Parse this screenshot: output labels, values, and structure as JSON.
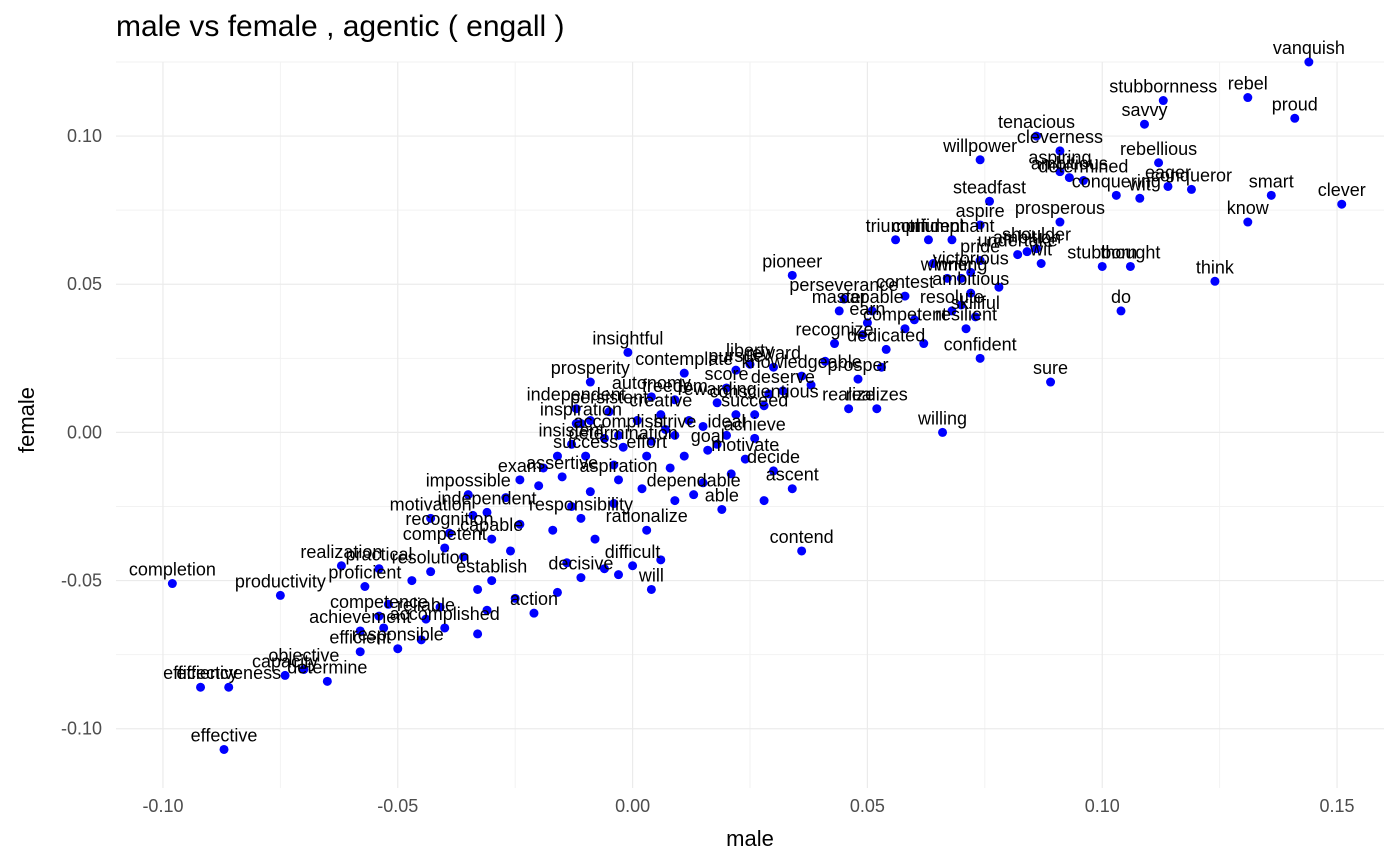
{
  "chart_data": {
    "type": "scatter",
    "title": "male vs female , agentic ( engall )",
    "xlabel": "male",
    "ylabel": "female",
    "xlim": [
      -0.11,
      0.16
    ],
    "ylim": [
      -0.12,
      0.125
    ],
    "x_ticks": [
      -0.1,
      -0.05,
      0.0,
      0.05,
      0.1,
      0.15
    ],
    "x_tick_labels": [
      "-0.10",
      "-0.05",
      "0.00",
      "0.05",
      "0.10",
      "0.15"
    ],
    "y_ticks": [
      -0.1,
      -0.05,
      0.0,
      0.05,
      0.1
    ],
    "y_tick_labels": [
      "-0.10",
      "-0.05",
      "0.00",
      "0.05",
      "0.10"
    ],
    "grid": true,
    "point_color": "#0000ff",
    "points": [
      {
        "label": "vanquish",
        "x": 0.144,
        "y": 0.125
      },
      {
        "label": "rebel",
        "x": 0.131,
        "y": 0.113
      },
      {
        "label": "stubbornness",
        "x": 0.113,
        "y": 0.112
      },
      {
        "label": "proud",
        "x": 0.141,
        "y": 0.106
      },
      {
        "label": "savvy",
        "x": 0.109,
        "y": 0.104
      },
      {
        "label": "tenacious",
        "x": 0.086,
        "y": 0.1
      },
      {
        "label": "cleverness",
        "x": 0.091,
        "y": 0.095
      },
      {
        "label": "rebellious",
        "x": 0.112,
        "y": 0.091
      },
      {
        "label": "willpower",
        "x": 0.074,
        "y": 0.092
      },
      {
        "label": "aspiring",
        "x": 0.091,
        "y": 0.088
      },
      {
        "label": "ambitious",
        "x": 0.093,
        "y": 0.086
      },
      {
        "label": "determined",
        "x": 0.096,
        "y": 0.085
      },
      {
        "label": "conquering",
        "x": 0.103,
        "y": 0.08
      },
      {
        "label": "conqueror",
        "x": 0.119,
        "y": 0.082
      },
      {
        "label": "eager",
        "x": 0.114,
        "y": 0.083
      },
      {
        "label": "wit",
        "x": 0.108,
        "y": 0.079
      },
      {
        "label": "smart",
        "x": 0.136,
        "y": 0.08
      },
      {
        "label": "clever",
        "x": 0.151,
        "y": 0.077
      },
      {
        "label": "steadfast",
        "x": 0.076,
        "y": 0.078
      },
      {
        "label": "know",
        "x": 0.131,
        "y": 0.071
      },
      {
        "label": "aspire",
        "x": 0.074,
        "y": 0.07
      },
      {
        "label": "prosperous",
        "x": 0.091,
        "y": 0.071
      },
      {
        "label": "triumph",
        "x": 0.056,
        "y": 0.065
      },
      {
        "label": "confident",
        "x": 0.063,
        "y": 0.065
      },
      {
        "label": "triumphant",
        "x": 0.068,
        "y": 0.065
      },
      {
        "label": "shoulder",
        "x": 0.086,
        "y": 0.062
      },
      {
        "label": "pride",
        "x": 0.074,
        "y": 0.058
      },
      {
        "label": "undertake",
        "x": 0.082,
        "y": 0.06
      },
      {
        "label": "ambition",
        "x": 0.084,
        "y": 0.061
      },
      {
        "label": "stubborn",
        "x": 0.1,
        "y": 0.056
      },
      {
        "label": "thought",
        "x": 0.106,
        "y": 0.056
      },
      {
        "label": "wit",
        "x": 0.087,
        "y": 0.057
      },
      {
        "label": "think",
        "x": 0.124,
        "y": 0.051
      },
      {
        "label": "winner",
        "x": 0.067,
        "y": 0.052
      },
      {
        "label": "victorious",
        "x": 0.072,
        "y": 0.054
      },
      {
        "label": "writing",
        "x": 0.07,
        "y": 0.052
      },
      {
        "label": "pioneer",
        "x": 0.034,
        "y": 0.053
      },
      {
        "label": "perseverance",
        "x": 0.045,
        "y": 0.045
      },
      {
        "label": "contest",
        "x": 0.058,
        "y": 0.046
      },
      {
        "label": "ambitious",
        "x": 0.072,
        "y": 0.047
      },
      {
        "label": "do",
        "x": 0.104,
        "y": 0.041
      },
      {
        "label": "master",
        "x": 0.044,
        "y": 0.041
      },
      {
        "label": "capable",
        "x": 0.051,
        "y": 0.041
      },
      {
        "label": "resolute",
        "x": 0.068,
        "y": 0.041
      },
      {
        "label": "skillful",
        "x": 0.073,
        "y": 0.039
      },
      {
        "label": "earn",
        "x": 0.05,
        "y": 0.037
      },
      {
        "label": "competent",
        "x": 0.058,
        "y": 0.035
      },
      {
        "label": "resilient",
        "x": 0.071,
        "y": 0.035
      },
      {
        "label": "recognize",
        "x": 0.043,
        "y": 0.03
      },
      {
        "label": "dedicated",
        "x": 0.054,
        "y": 0.028
      },
      {
        "label": "confident",
        "x": 0.074,
        "y": 0.025
      },
      {
        "label": "insightful",
        "x": -0.001,
        "y": 0.027
      },
      {
        "label": "liberty",
        "x": 0.025,
        "y": 0.023
      },
      {
        "label": "contemplate",
        "x": 0.011,
        "y": 0.02
      },
      {
        "label": "pursue",
        "x": 0.022,
        "y": 0.021
      },
      {
        "label": "reward",
        "x": 0.03,
        "y": 0.022
      },
      {
        "label": "knowledgeable",
        "x": 0.036,
        "y": 0.019
      },
      {
        "label": "prosper",
        "x": 0.048,
        "y": 0.018
      },
      {
        "label": "sure",
        "x": 0.089,
        "y": 0.017
      },
      {
        "label": "prosperity",
        "x": -0.009,
        "y": 0.017
      },
      {
        "label": "score",
        "x": 0.02,
        "y": 0.015
      },
      {
        "label": "deserve",
        "x": 0.032,
        "y": 0.014
      },
      {
        "label": "autonomy",
        "x": 0.004,
        "y": 0.012
      },
      {
        "label": "freedom",
        "x": 0.009,
        "y": 0.011
      },
      {
        "label": "rewarding",
        "x": 0.018,
        "y": 0.01
      },
      {
        "label": "conscientious",
        "x": 0.028,
        "y": 0.009
      },
      {
        "label": "realize",
        "x": 0.046,
        "y": 0.008
      },
      {
        "label": "realizes",
        "x": 0.052,
        "y": 0.008
      },
      {
        "label": "independent",
        "x": -0.012,
        "y": 0.008
      },
      {
        "label": "persistent",
        "x": -0.005,
        "y": 0.007
      },
      {
        "label": "creative",
        "x": 0.006,
        "y": 0.006
      },
      {
        "label": "succeed",
        "x": 0.026,
        "y": 0.006
      },
      {
        "label": "willing",
        "x": 0.066,
        "y": 0.0
      },
      {
        "label": "inspiration",
        "x": -0.011,
        "y": 0.003
      },
      {
        "label": "accomplish",
        "x": -0.003,
        "y": -0.001
      },
      {
        "label": "strive",
        "x": 0.009,
        "y": -0.001
      },
      {
        "label": "ideal",
        "x": 0.02,
        "y": -0.001
      },
      {
        "label": "achieve",
        "x": 0.026,
        "y": -0.002
      },
      {
        "label": "insistent",
        "x": -0.013,
        "y": -0.004
      },
      {
        "label": "determination",
        "x": -0.002,
        "y": -0.005
      },
      {
        "label": "goal",
        "x": 0.016,
        "y": -0.006
      },
      {
        "label": "success",
        "x": -0.01,
        "y": -0.008
      },
      {
        "label": "effort",
        "x": 0.003,
        "y": -0.008
      },
      {
        "label": "motivate",
        "x": 0.024,
        "y": -0.009
      },
      {
        "label": "decide",
        "x": 0.03,
        "y": -0.013
      },
      {
        "label": "exam",
        "x": -0.024,
        "y": -0.016
      },
      {
        "label": "assertive",
        "x": -0.015,
        "y": -0.015
      },
      {
        "label": "aspiration",
        "x": -0.003,
        "y": -0.016
      },
      {
        "label": "ascent",
        "x": 0.034,
        "y": -0.019
      },
      {
        "label": "impossible",
        "x": -0.035,
        "y": -0.021
      },
      {
        "label": "dependable",
        "x": 0.013,
        "y": -0.021
      },
      {
        "label": "able",
        "x": 0.019,
        "y": -0.026
      },
      {
        "label": "motivation",
        "x": -0.043,
        "y": -0.029
      },
      {
        "label": "independent",
        "x": -0.031,
        "y": -0.027
      },
      {
        "label": "responsibility",
        "x": -0.011,
        "y": -0.029
      },
      {
        "label": "rationalize",
        "x": 0.003,
        "y": -0.033
      },
      {
        "label": "recognition",
        "x": -0.039,
        "y": -0.034
      },
      {
        "label": "contend",
        "x": 0.036,
        "y": -0.04
      },
      {
        "label": "capable",
        "x": -0.03,
        "y": -0.036
      },
      {
        "label": "competent",
        "x": -0.04,
        "y": -0.039
      },
      {
        "label": "realization",
        "x": -0.062,
        "y": -0.045
      },
      {
        "label": "practical",
        "x": -0.054,
        "y": -0.046
      },
      {
        "label": "resolution",
        "x": -0.043,
        "y": -0.047
      },
      {
        "label": "difficult",
        "x": 0.0,
        "y": -0.045
      },
      {
        "label": "will",
        "x": 0.004,
        "y": -0.053
      },
      {
        "label": "completion",
        "x": -0.098,
        "y": -0.051
      },
      {
        "label": "productivity",
        "x": -0.075,
        "y": -0.055
      },
      {
        "label": "proficient",
        "x": -0.057,
        "y": -0.052
      },
      {
        "label": "establish",
        "x": -0.03,
        "y": -0.05
      },
      {
        "label": "decisive",
        "x": -0.011,
        "y": -0.049
      },
      {
        "label": "competence",
        "x": -0.054,
        "y": -0.062
      },
      {
        "label": "reliable",
        "x": -0.044,
        "y": -0.063
      },
      {
        "label": "action",
        "x": -0.021,
        "y": -0.061
      },
      {
        "label": "achievement",
        "x": -0.058,
        "y": -0.067
      },
      {
        "label": "accomplished",
        "x": -0.04,
        "y": -0.066
      },
      {
        "label": "efficient",
        "x": -0.058,
        "y": -0.074
      },
      {
        "label": "responsible",
        "x": -0.05,
        "y": -0.073
      },
      {
        "label": "objective",
        "x": -0.07,
        "y": -0.08
      },
      {
        "label": "determine",
        "x": -0.065,
        "y": -0.084
      },
      {
        "label": "capacity",
        "x": -0.074,
        "y": -0.082
      },
      {
        "label": "effectiveness",
        "x": -0.086,
        "y": -0.086
      },
      {
        "label": "efficiency",
        "x": -0.092,
        "y": -0.086
      },
      {
        "label": "effective",
        "x": -0.087,
        "y": -0.107
      }
    ],
    "unlabeled_points": [
      [
        -0.012,
        0.003
      ],
      [
        -0.009,
        0.004
      ],
      [
        0.001,
        0.004
      ],
      [
        0.012,
        0.004
      ],
      [
        0.022,
        0.006
      ],
      [
        0.015,
        0.002
      ],
      [
        0.007,
        0.001
      ],
      [
        -0.006,
        -0.002
      ],
      [
        0.004,
        -0.003
      ],
      [
        0.018,
        -0.004
      ],
      [
        -0.016,
        -0.008
      ],
      [
        -0.004,
        -0.011
      ],
      [
        0.008,
        -0.012
      ],
      [
        0.021,
        -0.014
      ],
      [
        -0.02,
        -0.018
      ],
      [
        -0.009,
        -0.02
      ],
      [
        0.002,
        -0.019
      ],
      [
        0.015,
        -0.017
      ],
      [
        -0.027,
        -0.022
      ],
      [
        -0.013,
        -0.025
      ],
      [
        -0.004,
        -0.024
      ],
      [
        0.009,
        -0.023
      ],
      [
        -0.034,
        -0.028
      ],
      [
        -0.024,
        -0.031
      ],
      [
        -0.017,
        -0.033
      ],
      [
        -0.036,
        -0.042
      ],
      [
        -0.026,
        -0.04
      ],
      [
        -0.014,
        -0.044
      ],
      [
        -0.006,
        -0.046
      ],
      [
        0.006,
        -0.043
      ],
      [
        -0.047,
        -0.05
      ],
      [
        -0.033,
        -0.053
      ],
      [
        -0.025,
        -0.056
      ],
      [
        -0.016,
        -0.054
      ],
      [
        -0.052,
        -0.058
      ],
      [
        -0.041,
        -0.059
      ],
      [
        -0.031,
        -0.06
      ],
      [
        -0.053,
        -0.066
      ],
      [
        -0.045,
        -0.07
      ],
      [
        -0.033,
        -0.068
      ],
      [
        0.029,
        0.013
      ],
      [
        0.038,
        0.016
      ],
      [
        0.041,
        0.024
      ],
      [
        0.053,
        0.022
      ],
      [
        0.062,
        0.03
      ],
      [
        0.06,
        0.038
      ],
      [
        0.049,
        0.033
      ],
      [
        0.07,
        0.043
      ],
      [
        0.078,
        0.049
      ],
      [
        0.064,
        0.057
      ],
      [
        -0.003,
        -0.048
      ],
      [
        -0.008,
        -0.036
      ],
      [
        0.028,
        -0.023
      ],
      [
        0.011,
        -0.008
      ],
      [
        -0.019,
        -0.012
      ]
    ]
  }
}
